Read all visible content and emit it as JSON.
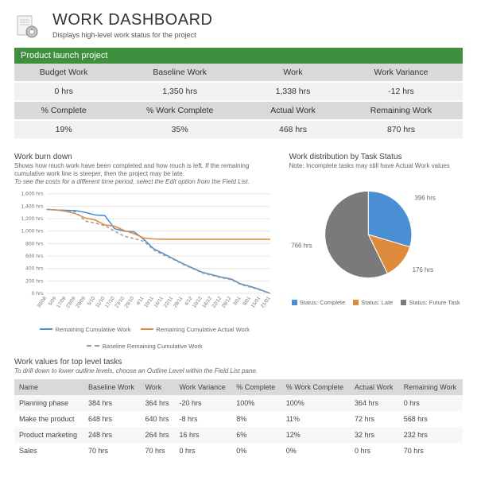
{
  "header": {
    "title": "WORK DASHBOARD",
    "subtitle": "Displays high-level work status for the project"
  },
  "project_bar": "Product launch project",
  "summary": {
    "row1": {
      "headers": [
        "Budget Work",
        "Baseline Work",
        "Work",
        "Work Variance"
      ],
      "values": [
        "0 hrs",
        "1,350 hrs",
        "1,338 hrs",
        "-12 hrs"
      ]
    },
    "row2": {
      "headers": [
        "% Complete",
        "% Work Complete",
        "Actual Work",
        "Remaining Work"
      ],
      "values": [
        "19%",
        "35%",
        "468 hrs",
        "870 hrs"
      ]
    }
  },
  "burndown": {
    "title": "Work burn down",
    "note1": "Shows how much work have been completed and how much is left. If the remaining cumulative work line is steeper, then the project may be late.",
    "note2": "To see the costs for a different time period, select the Edit option from the Field List.",
    "ylim": [
      0,
      1600
    ],
    "ytick_step": 200,
    "y_unit": "hrs",
    "x_labels": [
      "30/08",
      "5/09",
      "17/09",
      "23/09",
      "29/09",
      "5/10",
      "11/10",
      "17/10",
      "23/10",
      "29/10",
      "4/11",
      "10/11",
      "16/11",
      "22/11",
      "28/11",
      "4/12",
      "10/12",
      "16/12",
      "22/12",
      "28/12",
      "3/01",
      "9/01",
      "15/01",
      "21/01"
    ],
    "series": [
      {
        "name": "Remaining Cumulative Work",
        "color": "#4a8fd4",
        "dash": "solid",
        "values": [
          1350,
          1340,
          1335,
          1330,
          1300,
          1260,
          1250,
          1040,
          1000,
          990,
          870,
          720,
          640,
          560,
          480,
          410,
          340,
          300,
          260,
          230,
          150,
          110,
          60,
          0
        ]
      },
      {
        "name": "Remaining Cumulative Actual Work",
        "color": "#e08b3c",
        "dash": "solid",
        "values": [
          1350,
          1340,
          1320,
          1280,
          1210,
          1180,
          1100,
          1080,
          1010,
          960,
          890,
          875,
          870,
          870,
          870,
          870,
          870,
          870,
          870,
          870,
          870,
          870,
          870,
          870
        ]
      },
      {
        "name": "Baseline Remaining Cumulative Work",
        "color": "#9e9e9e",
        "dash": "dash",
        "values": [
          1350,
          1340,
          1320,
          1310,
          1160,
          1130,
          1090,
          1000,
          920,
          880,
          840,
          700,
          620,
          550,
          470,
          400,
          330,
          290,
          250,
          220,
          140,
          100,
          50,
          0
        ]
      }
    ],
    "grid_color": "#e6e6e6",
    "background_color": "#ffffff"
  },
  "pie": {
    "title": "Work distribution by Task Status",
    "note": "Note: Incomplete tasks may still have Actual Work values",
    "slices": [
      {
        "label": "Status: Complete",
        "value": 396,
        "color": "#4a8fd4"
      },
      {
        "label": "Status: Late",
        "value": 176,
        "color": "#e08b3c"
      },
      {
        "label": "Status: Future Task",
        "value": 766,
        "color": "#7a7a7a"
      }
    ],
    "label_suffix": " hrs",
    "background_color": "#ffffff"
  },
  "tasks": {
    "title": "Work values for top level tasks",
    "note": "To drill down to lower outline levels, choose an Outline Level within the Field List pane.",
    "columns": [
      "Name",
      "Baseline Work",
      "Work",
      "Work Variance",
      "% Complete",
      "% Work Complete",
      "Actual Work",
      "Remaining Work"
    ],
    "rows": [
      [
        "Planning phase",
        "384 hrs",
        "364 hrs",
        "-20 hrs",
        "100%",
        "100%",
        "364 hrs",
        "0 hrs"
      ],
      [
        "Make the product",
        "648 hrs",
        "640 hrs",
        "-8 hrs",
        "8%",
        "11%",
        "72 hrs",
        "568 hrs"
      ],
      [
        "Product marketing",
        "248 hrs",
        "264 hrs",
        "16 hrs",
        "6%",
        "12%",
        "32 hrs",
        "232 hrs"
      ],
      [
        "Sales",
        "70 hrs",
        "70 hrs",
        "0 hrs",
        "0%",
        "0%",
        "0 hrs",
        "70 hrs"
      ]
    ]
  },
  "colors": {
    "project_bar_bg": "#3f8f3f",
    "header_bg": "#d9d9d9",
    "cell_bg": "#f2f2f2"
  }
}
